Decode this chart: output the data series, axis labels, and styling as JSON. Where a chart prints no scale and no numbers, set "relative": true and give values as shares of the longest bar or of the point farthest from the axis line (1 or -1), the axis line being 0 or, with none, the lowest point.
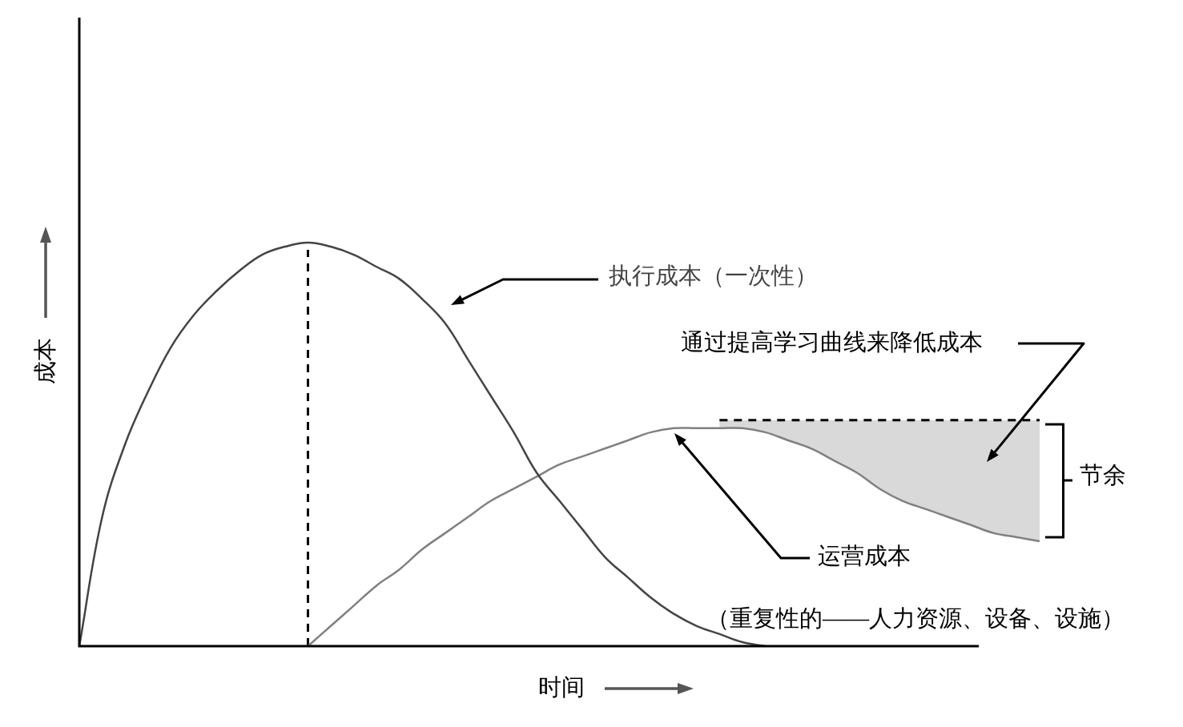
{
  "chart_data": {
    "type": "line",
    "relative": true,
    "xlabel": "时间",
    "ylabel": "成本",
    "tick_labels": false,
    "legend": false,
    "grid": false,
    "marker": "none",
    "categories": [
      null,
      null,
      null,
      null,
      null,
      null,
      null,
      null,
      null,
      null,
      null,
      null,
      null,
      null,
      null,
      null,
      null,
      null,
      null,
      null,
      null,
      null,
      null,
      null,
      null,
      null,
      null,
      null,
      null,
      null,
      null,
      null,
      null,
      null,
      null,
      null,
      null,
      null,
      null,
      null,
      null,
      null,
      null
    ],
    "series": [
      {
        "name": "执行成本（一次性）",
        "color": "#444444",
        "values": [
          0,
          0.32,
          0.5,
          0.63,
          0.74,
          0.82,
          0.88,
          0.93,
          0.97,
          0.99,
          1,
          0.99,
          0.97,
          0.94,
          0.91,
          0.86,
          0.8,
          0.71,
          0.62,
          0.53,
          0.43,
          0.36,
          0.29,
          0.22,
          0.17,
          0.12,
          0.08,
          0.05,
          0.03,
          0.01,
          0,
          null,
          null,
          null,
          null,
          null,
          null,
          null,
          null,
          null,
          null,
          null,
          null
        ]
      },
      {
        "name": "运营成本",
        "color": "#808080",
        "values": [
          null,
          null,
          null,
          null,
          null,
          null,
          null,
          null,
          null,
          null,
          0,
          0.05,
          0.1,
          0.15,
          0.19,
          0.24,
          0.28,
          0.32,
          0.36,
          0.39,
          0.42,
          0.45,
          0.47,
          0.49,
          0.51,
          0.53,
          0.54,
          0.54,
          0.54,
          0.54,
          0.53,
          0.51,
          0.49,
          0.46,
          0.43,
          0.39,
          0.36,
          0.34,
          0.32,
          0.3,
          0.28,
          0.27,
          0.26
        ]
      },
      {
        "color": "#000000",
        "line_style": "dashed",
        "values": [
          null,
          null,
          null,
          null,
          null,
          null,
          null,
          null,
          null,
          null,
          null,
          null,
          null,
          null,
          null,
          null,
          null,
          null,
          null,
          null,
          null,
          null,
          null,
          null,
          null,
          null,
          null,
          null,
          0.56,
          0.56,
          0.56,
          0.56,
          0.56,
          0.56,
          0.56,
          0.56,
          0.56,
          0.56,
          0.56,
          0.56,
          0.56,
          0.56,
          0.56
        ],
        "lower": [
          null,
          null,
          null,
          null,
          null,
          null,
          null,
          null,
          null,
          null,
          null,
          null,
          null,
          null,
          null,
          null,
          null,
          null,
          null,
          null,
          null,
          null,
          null,
          null,
          null,
          null,
          null,
          null,
          0.54,
          0.54,
          0.53,
          0.51,
          0.49,
          0.46,
          0.43,
          0.39,
          0.36,
          0.34,
          0.32,
          0.3,
          0.28,
          0.27,
          0.26
        ],
        "upper": [
          null,
          null,
          null,
          null,
          null,
          null,
          null,
          null,
          null,
          null,
          null,
          null,
          null,
          null,
          null,
          null,
          null,
          null,
          null,
          null,
          null,
          null,
          null,
          null,
          null,
          null,
          null,
          null,
          0.56,
          0.56,
          0.56,
          0.56,
          0.56,
          0.56,
          0.56,
          0.56,
          0.56,
          0.56,
          0.56,
          0.56,
          0.56,
          0.56,
          0.56
        ]
      }
    ],
    "annotations": [
      "通过提高学习曲线来降低成本",
      "节余",
      "（重复性的——人力资源、设备、设施）"
    ]
  }
}
